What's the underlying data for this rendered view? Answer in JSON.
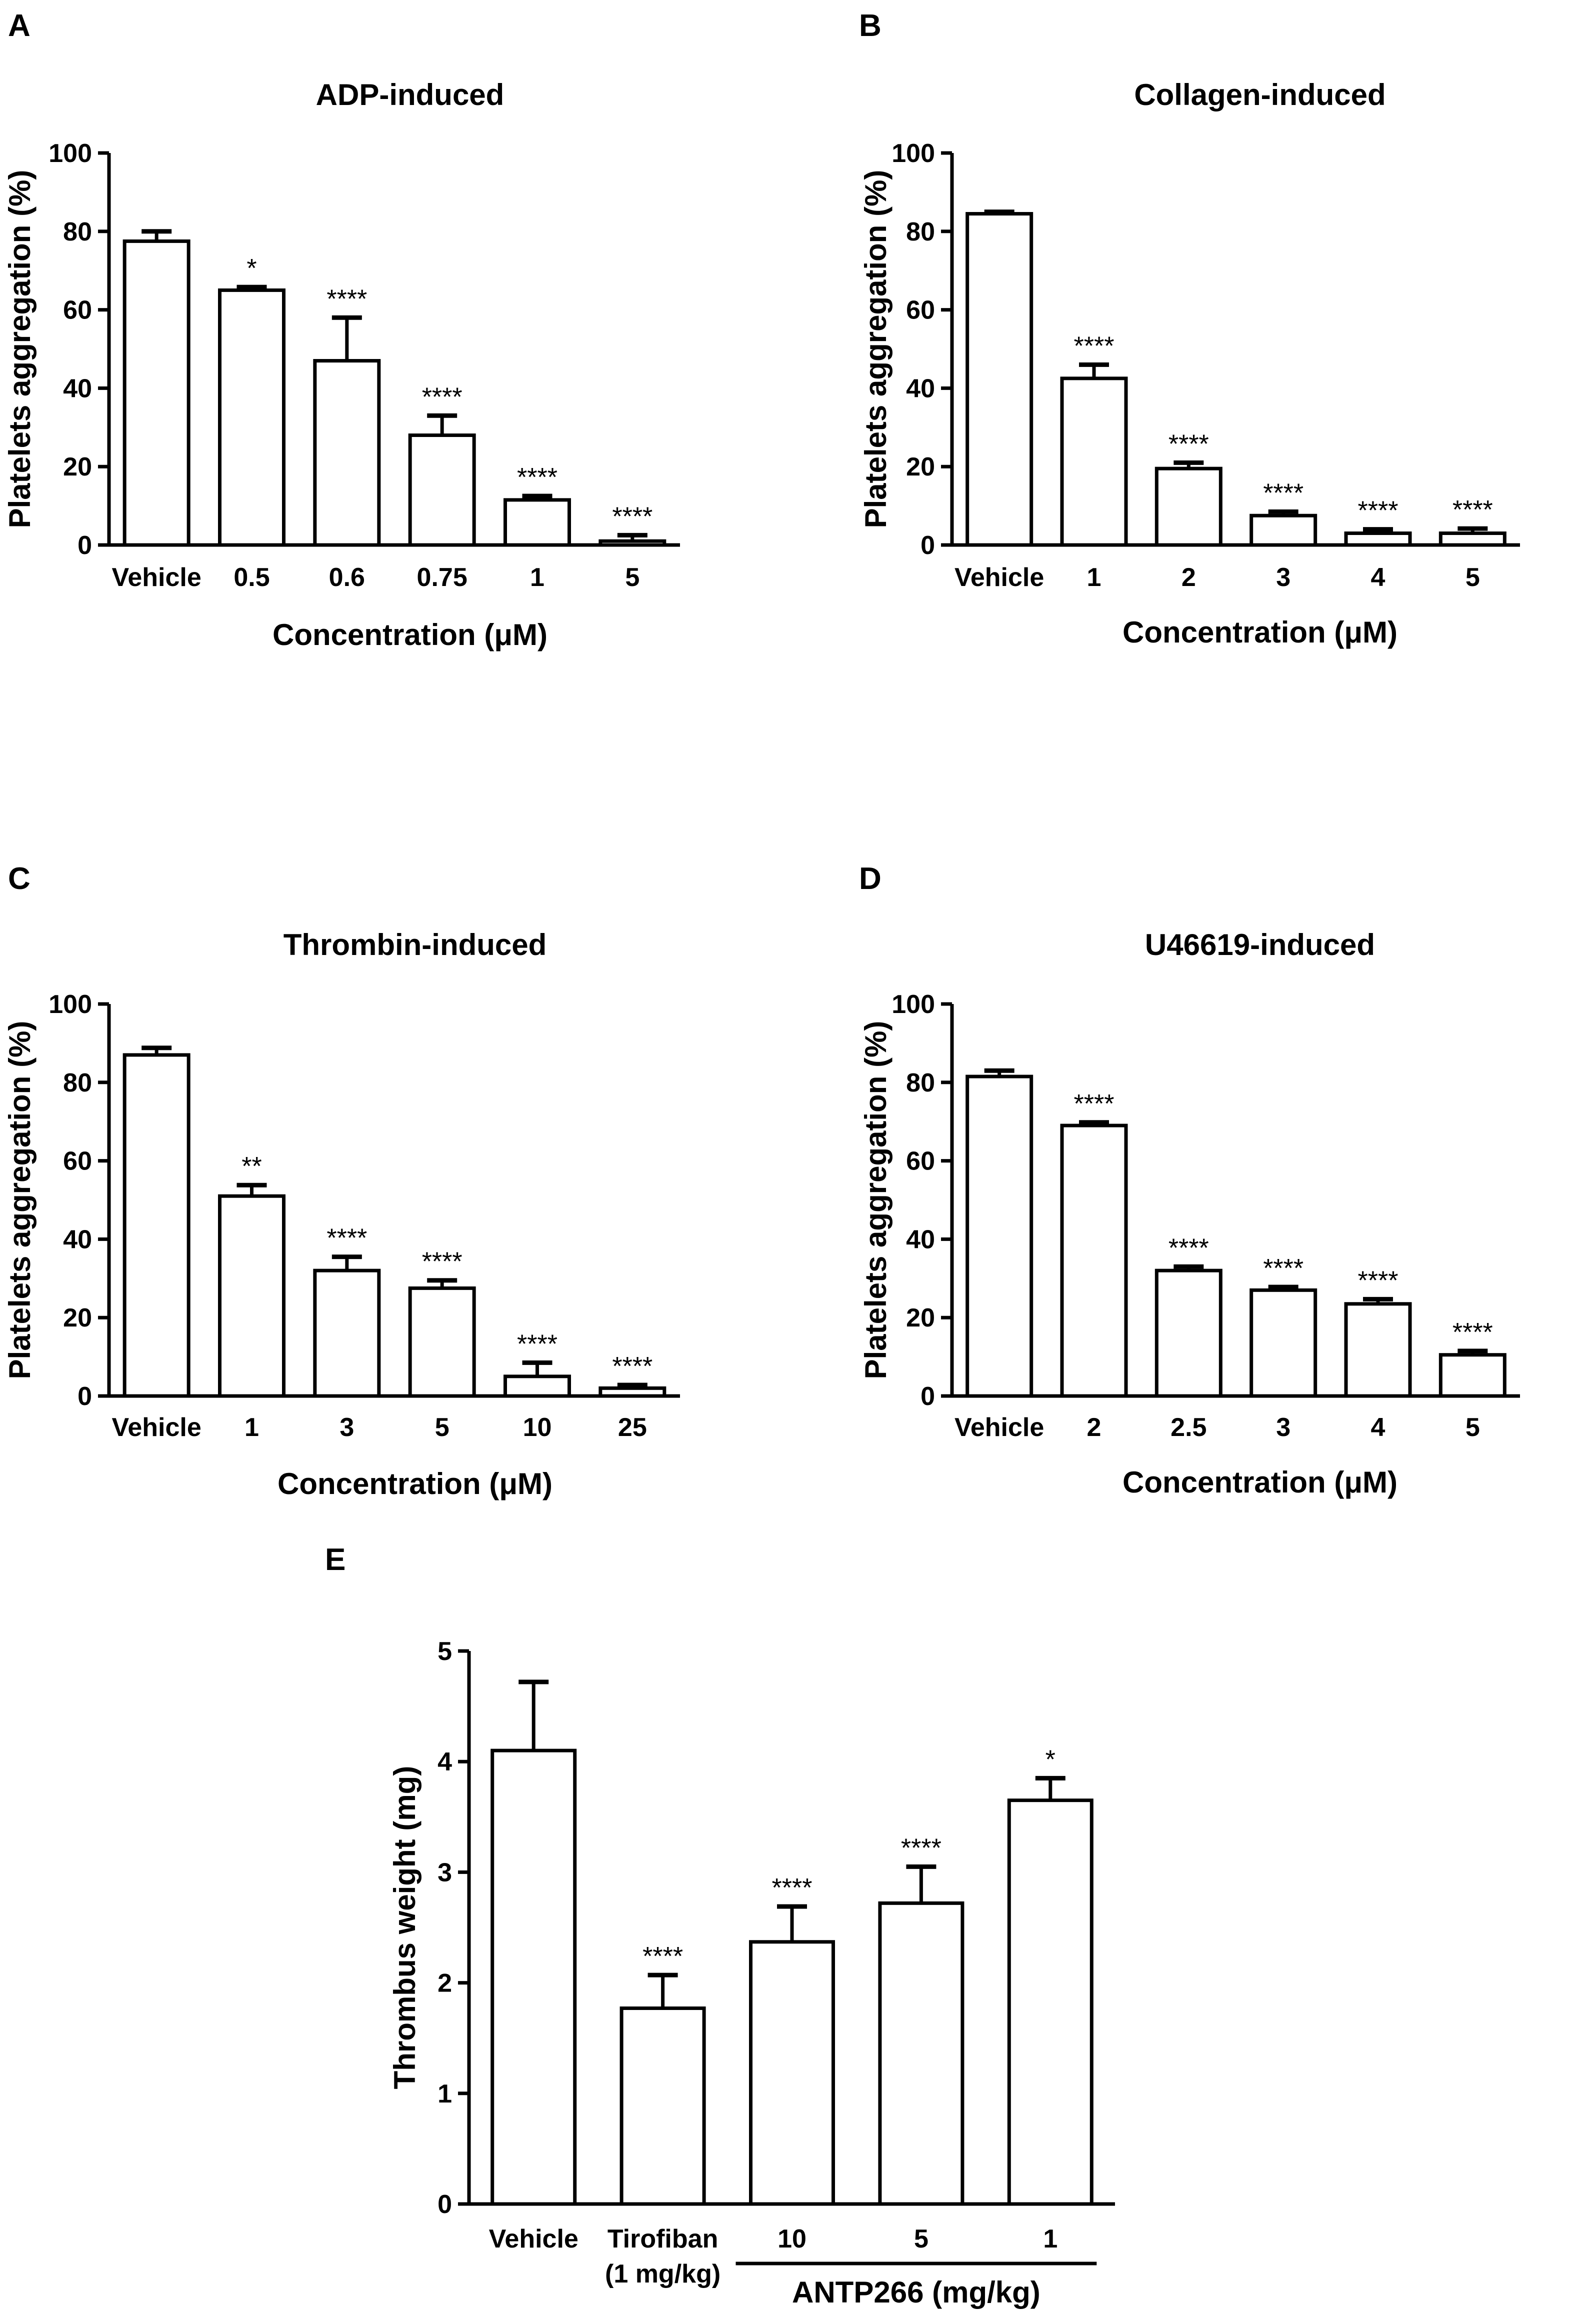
{
  "chart_data": [
    {
      "panel": "A",
      "type": "bar",
      "title": "ADP-induced",
      "xlabel": "Concentration (μM)",
      "ylabel": "Platelets aggregation (%)",
      "ylim": [
        0,
        100
      ],
      "yticks": [
        "0",
        "20",
        "40",
        "60",
        "80",
        "100"
      ],
      "categories": [
        "Vehicle",
        "0.5",
        "0.6",
        "0.75",
        "1",
        "5"
      ],
      "values": [
        77.5,
        65,
        47,
        28,
        11.5,
        1
      ],
      "errors": [
        2.5,
        0.8,
        11,
        5,
        1,
        1.5
      ],
      "significance": [
        "",
        "*",
        "****",
        "****",
        "****",
        "****"
      ],
      "grid": false,
      "legend": "none"
    },
    {
      "panel": "B",
      "type": "bar",
      "title": "Collagen-induced",
      "xlabel": "Concentration (μM)",
      "ylabel": "Platelets aggregation (%)",
      "ylim": [
        0,
        100
      ],
      "yticks": [
        "0",
        "20",
        "40",
        "60",
        "80",
        "100"
      ],
      "categories": [
        "Vehicle",
        "1",
        "2",
        "3",
        "4",
        "5"
      ],
      "values": [
        84.5,
        42.5,
        19.5,
        7.5,
        3,
        3
      ],
      "errors": [
        0.5,
        3.5,
        1.5,
        1,
        1,
        1.2
      ],
      "significance": [
        "",
        "****",
        "****",
        "****",
        "****",
        "****"
      ],
      "grid": false,
      "legend": "none"
    },
    {
      "panel": "C",
      "type": "bar",
      "title": "Thrombin-induced",
      "xlabel": "Concentration (μM)",
      "ylabel": "Platelets aggregation (%)",
      "ylim": [
        0,
        100
      ],
      "yticks": [
        "0",
        "20",
        "40",
        "60",
        "80",
        "100"
      ],
      "categories": [
        "Vehicle",
        "1",
        "3",
        "5",
        "10",
        "25"
      ],
      "values": [
        87,
        51,
        32,
        27.5,
        5,
        2
      ],
      "errors": [
        1.8,
        2.8,
        3.5,
        2,
        3.5,
        0.8
      ],
      "significance": [
        "",
        "**",
        "****",
        "****",
        "****",
        "****"
      ],
      "grid": false,
      "legend": "none"
    },
    {
      "panel": "D",
      "type": "bar",
      "title": "U46619-induced",
      "xlabel": "Concentration (μM)",
      "ylabel": "Platelets aggregation (%)",
      "ylim": [
        0,
        100
      ],
      "yticks": [
        "0",
        "20",
        "40",
        "60",
        "80",
        "100"
      ],
      "categories": [
        "Vehicle",
        "2",
        "2.5",
        "3",
        "4",
        "5"
      ],
      "values": [
        81.5,
        69,
        32,
        27,
        23.5,
        10.5
      ],
      "errors": [
        1.5,
        0.8,
        1,
        0.8,
        1.2,
        1
      ],
      "significance": [
        "",
        "****",
        "****",
        "****",
        "****",
        "****"
      ],
      "grid": false,
      "legend": "none"
    },
    {
      "panel": "E",
      "type": "bar",
      "title": "",
      "xlabel": "",
      "ylabel": "Thrombus weight (mg)",
      "ylim": [
        0,
        5
      ],
      "yticks": [
        "0",
        "1",
        "2",
        "3",
        "4",
        "5"
      ],
      "categories": [
        "Vehicle",
        "Tirofiban",
        "10",
        "5",
        "1"
      ],
      "category_sublabels": [
        "",
        "(1 mg/kg)",
        "",
        "",
        ""
      ],
      "values": [
        4.1,
        1.77,
        2.37,
        2.72,
        3.65
      ],
      "errors": [
        0.62,
        0.3,
        0.32,
        0.33,
        0.2
      ],
      "significance": [
        "",
        "****",
        "****",
        "****",
        "*"
      ],
      "group_label": "ANTP266 (mg/kg)",
      "grid": false,
      "legend": "none"
    }
  ]
}
